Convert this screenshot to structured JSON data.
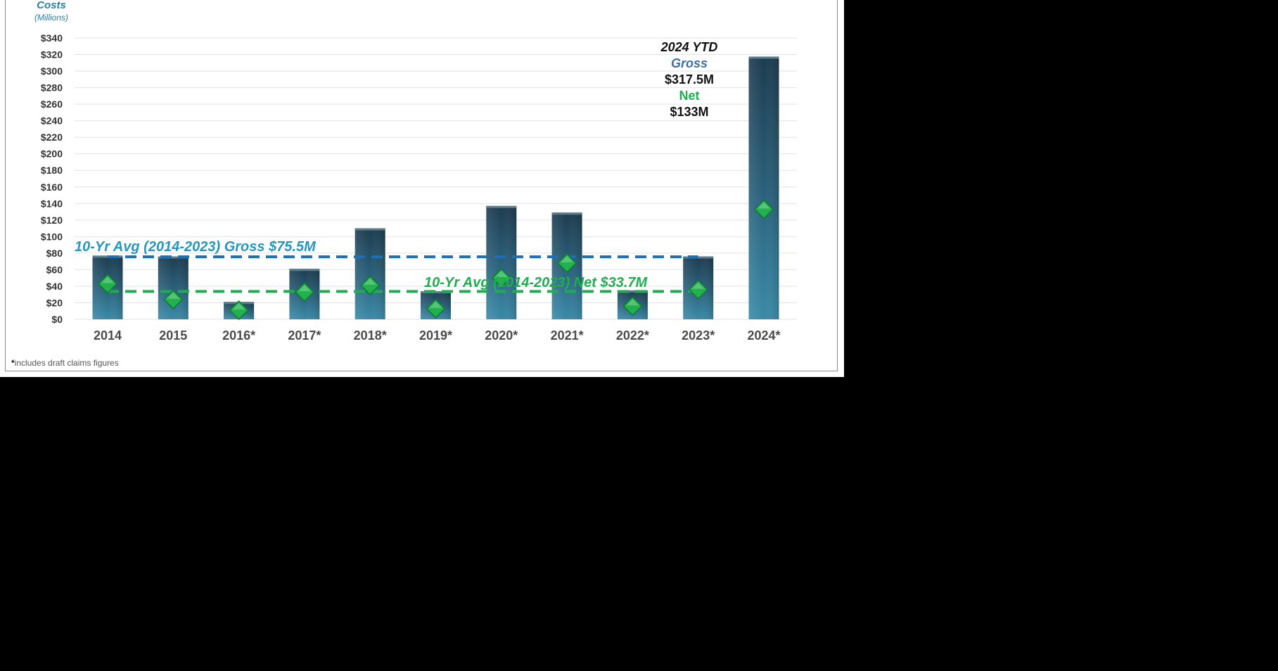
{
  "chart_data": {
    "type": "bar",
    "title": "Costs",
    "ylabel_sub": "(Millions)",
    "categories": [
      "2014",
      "2015",
      "2016*",
      "2017*",
      "2018*",
      "2019*",
      "2020*",
      "2021*",
      "2022*",
      "2023*",
      "2024*"
    ],
    "series": [
      {
        "values": [
          77,
          76,
          21,
          61,
          110,
          34,
          137,
          129,
          35,
          76,
          317.5
        ],
        "color": "#2f6f8a"
      },
      {
        "values": [
          43,
          24,
          11,
          33,
          41,
          13,
          50,
          68,
          16,
          36,
          133
        ],
        "color": "#22b14c"
      }
    ],
    "yticks": [
      "$0",
      "$20",
      "$40",
      "$60",
      "$80",
      "$100",
      "$120",
      "$140",
      "$160",
      "$180",
      "$200",
      "$220",
      "$240",
      "$260",
      "$280",
      "$300",
      "$320",
      "$340"
    ],
    "ylim": [
      0,
      340
    ],
    "grid": true,
    "reference_lines": [
      {
        "label": "10-Yr Avg (2014-2023) Gross $75.5M",
        "value": 75.5,
        "color": "#1f6fb5"
      },
      {
        "label": "10-Yr Avg (2014-2023) Net $33.7M",
        "value": 33.7,
        "color": "#1fae4f"
      }
    ],
    "annotation": {
      "line1": "2024 YTD",
      "line2": "Gross",
      "line3": "$317.5M",
      "line4": "Net",
      "line5": "$133M"
    },
    "footnote": "includes draft claims figures",
    "footnote_mark": "*"
  }
}
